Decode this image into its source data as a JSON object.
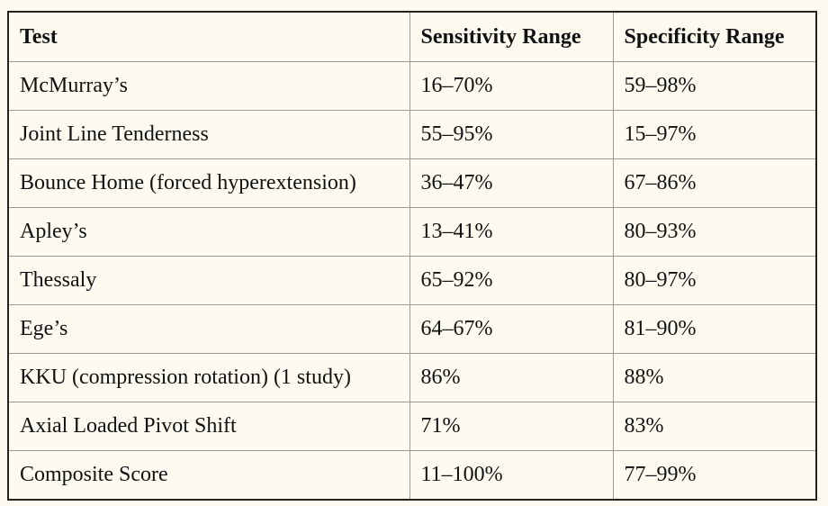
{
  "table": {
    "headers": [
      "Test",
      "Sensitivity Range",
      "Specificity Range"
    ],
    "rows": [
      [
        "McMurray’s",
        "16–70%",
        "59–98%"
      ],
      [
        "Joint Line Tenderness",
        "55–95%",
        "15–97%"
      ],
      [
        "Bounce Home (forced hyperextension)",
        "36–47%",
        "67–86%"
      ],
      [
        "Apley’s",
        "13–41%",
        "80–93%"
      ],
      [
        "Thessaly",
        "65–92%",
        "80–97%"
      ],
      [
        "Ege’s",
        "64–67%",
        "81–90%"
      ],
      [
        "KKU (compression rotation) (1 study)",
        "86%",
        "88%"
      ],
      [
        "Axial Loaded Pivot Shift",
        "71%",
        "83%"
      ],
      [
        "Composite Score",
        "11–100%",
        "77–99%"
      ]
    ]
  }
}
